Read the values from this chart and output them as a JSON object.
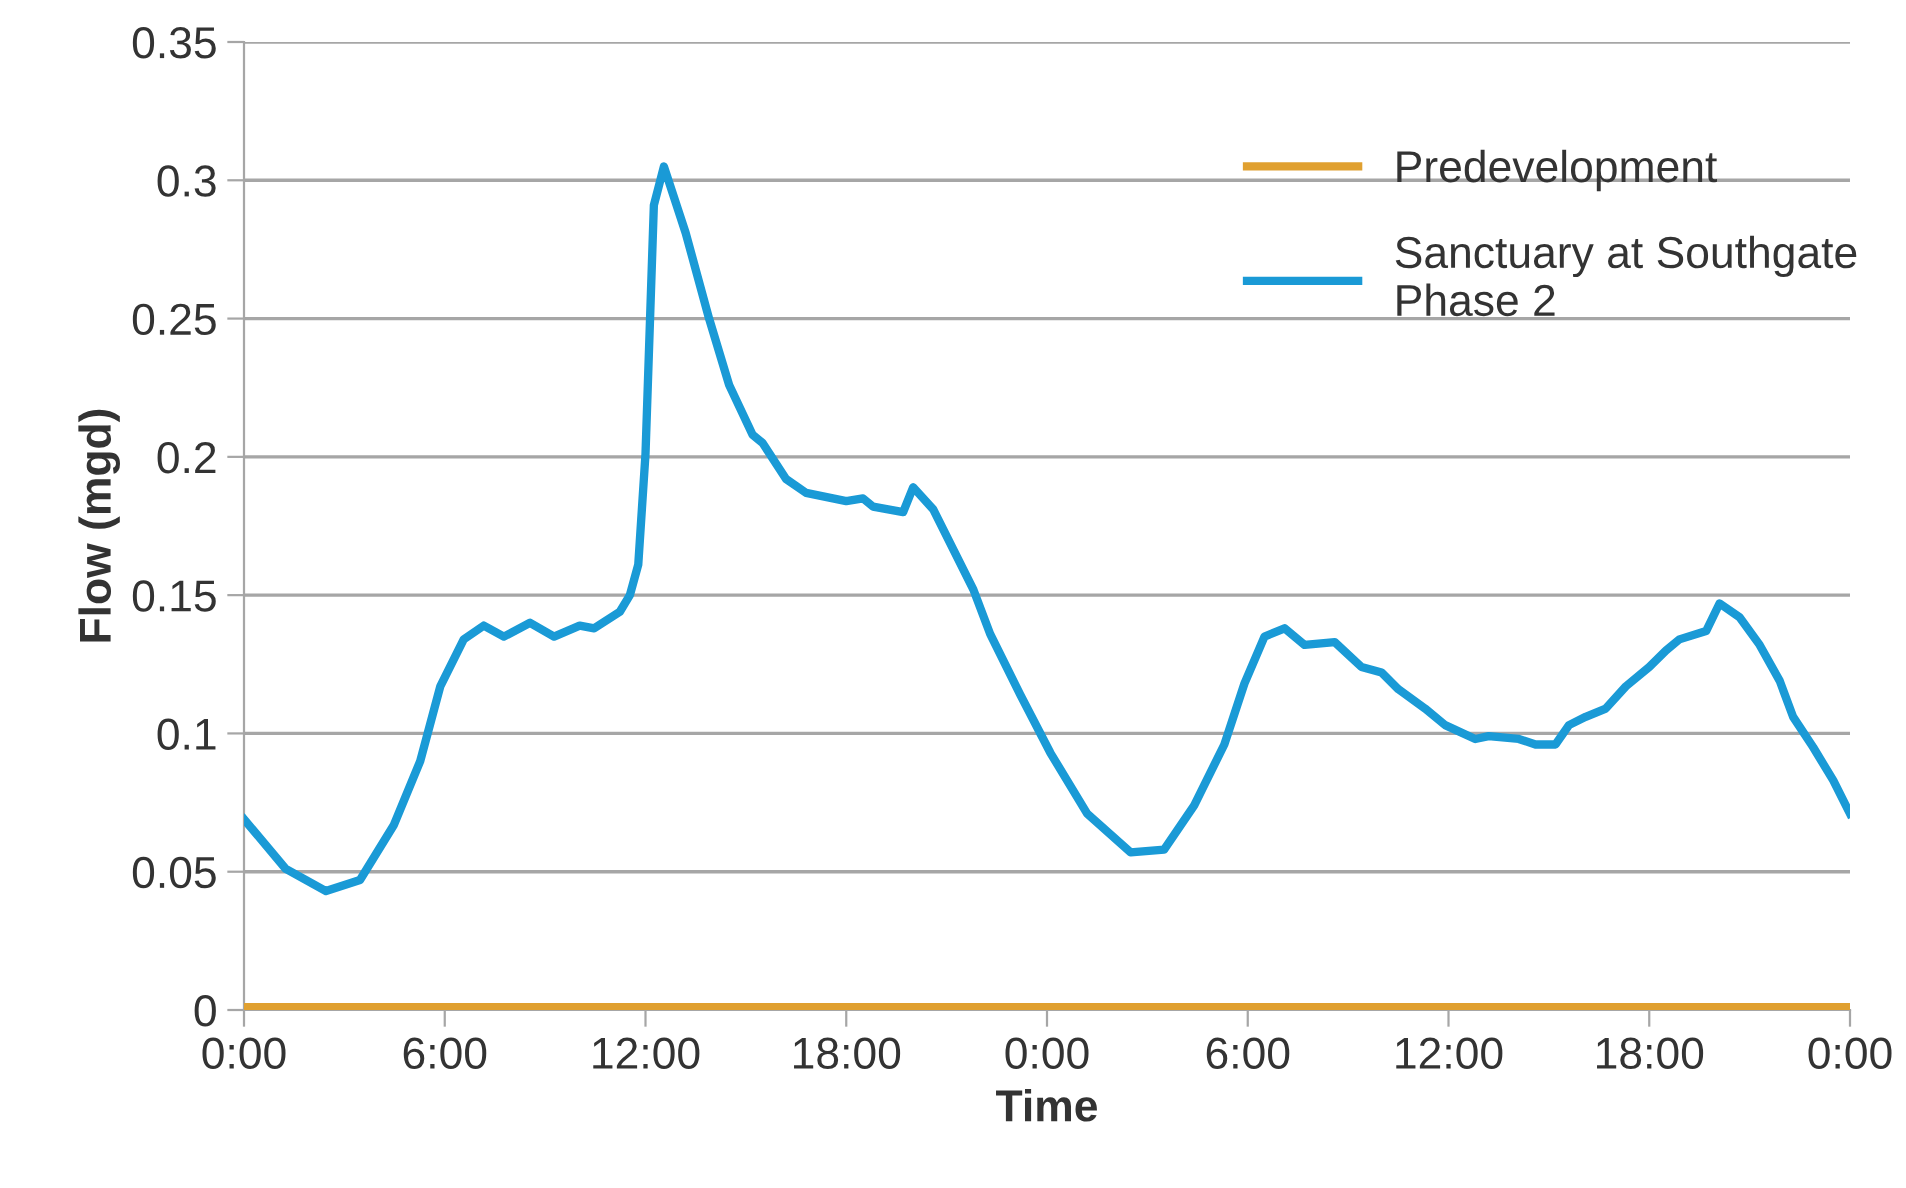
{
  "chart_data": {
    "type": "line",
    "xlabel": "Time",
    "ylabel": "Flow (mgd)",
    "xlim": [
      "2000-01-01T00:00",
      "2000-01-03T00:00"
    ],
    "xticks": [
      {
        "value": "2000-01-01T00:00",
        "label": "0:00"
      },
      {
        "value": "2000-01-01T06:00",
        "label": "6:00"
      },
      {
        "value": "2000-01-01T12:00",
        "label": "12:00"
      },
      {
        "value": "2000-01-01T18:00",
        "label": "18:00"
      },
      {
        "value": "2000-01-02T00:00",
        "label": "0:00"
      },
      {
        "value": "2000-01-02T06:00",
        "label": "6:00"
      },
      {
        "value": "2000-01-02T12:00",
        "label": "12:00"
      },
      {
        "value": "2000-01-02T18:00",
        "label": "18:00"
      },
      {
        "value": "2000-01-03T00:00",
        "label": "0:00"
      }
    ],
    "ylim": [
      0,
      0.35
    ],
    "yticks": [
      0,
      0.05,
      0.1,
      0.15,
      0.2,
      0.25,
      0.3,
      0.35
    ],
    "grid": "y",
    "legend": "top right",
    "marker": "none",
    "line_style": "solid",
    "series": [
      {
        "name": "Predevelopment",
        "color": "#e0a030",
        "x": [
          "2000-01-01T00:00",
          "2000-01-01T06:00",
          "2000-01-01T12:00",
          "2000-01-01T18:00",
          "2000-01-01T20:00",
          "2000-01-02T00:00",
          "2000-01-02T06:00",
          "2000-01-02T12:00",
          "2000-01-02T18:00",
          "2000-01-02T20:00",
          "2000-01-03T00:00"
        ],
        "values": [
          0.001,
          0.001,
          0.001,
          0.001,
          0.001,
          0.001,
          0.001,
          0.001,
          0.001,
          0.001,
          0.001
        ]
      },
      {
        "name": "Sanctuary at Southgate\nPhase 2",
        "color": "#1a9ad6",
        "x": [
          "2000-01-01T00:00",
          "2000-01-01T01:15",
          "2000-01-01T02:27",
          "2000-01-01T03:28",
          "2000-01-01T04:29",
          "2000-01-01T05:16",
          "2000-01-01T05:52",
          "2000-01-01T06:34",
          "2000-01-01T07:10",
          "2000-01-01T07:46",
          "2000-01-01T08:33",
          "2000-01-01T09:16",
          "2000-01-01T10:02",
          "2000-01-01T10:28",
          "2000-01-01T11:14",
          "2000-01-01T11:32",
          "2000-01-01T11:47",
          "2000-01-01T12:00",
          "2000-01-01T12:15",
          "2000-01-01T12:33",
          "2000-01-01T13:12",
          "2000-01-01T13:54",
          "2000-01-01T14:30",
          "2000-01-01T15:12",
          "2000-01-01T15:30",
          "2000-01-01T16:12",
          "2000-01-01T16:48",
          "2000-01-01T18:00",
          "2000-01-01T18:30",
          "2000-01-01T18:48",
          "2000-01-01T19:42",
          "2000-01-01T20:00",
          "2000-01-01T20:36",
          "2000-01-01T21:48",
          "2000-01-01T22:18",
          "2000-01-01T23:12",
          "2000-01-02T00:06",
          "2000-01-02T01:12",
          "2000-01-02T02:30",
          "2000-01-02T03:30",
          "2000-01-02T04:24",
          "2000-01-02T05:18",
          "2000-01-02T05:54",
          "2000-01-02T06:30",
          "2000-01-02T07:06",
          "2000-01-02T07:42",
          "2000-01-02T08:36",
          "2000-01-02T09:24",
          "2000-01-02T10:00",
          "2000-01-02T10:30",
          "2000-01-02T11:18",
          "2000-01-02T11:54",
          "2000-01-02T12:48",
          "2000-01-02T13:12",
          "2000-01-02T14:06",
          "2000-01-02T14:36",
          "2000-01-02T15:12",
          "2000-01-02T15:36",
          "2000-01-02T16:06",
          "2000-01-02T16:42",
          "2000-01-02T17:18",
          "2000-01-02T18:00",
          "2000-01-02T18:30",
          "2000-01-02T18:54",
          "2000-01-02T19:42",
          "2000-01-02T20:06",
          "2000-01-02T20:42",
          "2000-01-02T21:18",
          "2000-01-02T21:54",
          "2000-01-02T22:18",
          "2000-01-02T22:54",
          "2000-01-02T23:30",
          "2000-01-03T00:00"
        ],
        "values": [
          0.069,
          0.051,
          0.043,
          0.047,
          0.067,
          0.09,
          0.117,
          0.134,
          0.139,
          0.135,
          0.14,
          0.135,
          0.139,
          0.138,
          0.144,
          0.15,
          0.161,
          0.201,
          0.291,
          0.305,
          0.281,
          0.25,
          0.226,
          0.208,
          0.205,
          0.192,
          0.187,
          0.184,
          0.185,
          0.182,
          0.18,
          0.189,
          0.181,
          0.152,
          0.136,
          0.114,
          0.093,
          0.071,
          0.057,
          0.058,
          0.074,
          0.096,
          0.118,
          0.135,
          0.138,
          0.132,
          0.133,
          0.124,
          0.122,
          0.116,
          0.109,
          0.103,
          0.098,
          0.099,
          0.098,
          0.096,
          0.096,
          0.103,
          0.106,
          0.109,
          0.117,
          0.124,
          0.13,
          0.134,
          0.137,
          0.147,
          0.142,
          0.132,
          0.119,
          0.106,
          0.095,
          0.083,
          0.071
        ]
      }
    ]
  }
}
